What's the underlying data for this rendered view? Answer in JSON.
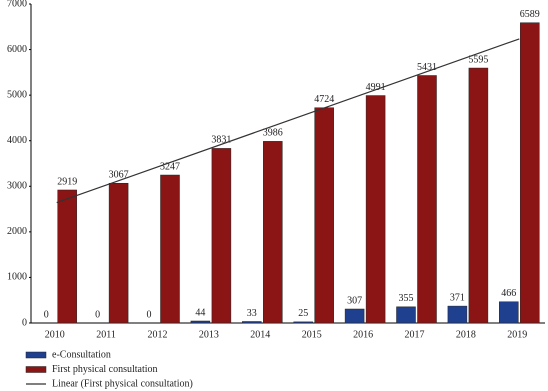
{
  "chart_data": {
    "type": "bar",
    "categories": [
      "2010",
      "2011",
      "2012",
      "2013",
      "2014",
      "2015",
      "2016",
      "2017",
      "2018",
      "2019"
    ],
    "series": [
      {
        "name": "e-Consultation",
        "color": "#1f3f8f",
        "values": [
          0,
          0,
          0,
          44,
          33,
          25,
          307,
          355,
          371,
          466
        ]
      },
      {
        "name": "First physical consultation",
        "color": "#8b1414",
        "values": [
          2919,
          3067,
          3247,
          3831,
          3986,
          4724,
          4991,
          5431,
          5595,
          6589
        ]
      }
    ],
    "trendline": {
      "name": "Linear (First physical consultation)",
      "color": "#333333"
    },
    "ylim": [
      0,
      7000
    ],
    "yticks": [
      0,
      1000,
      2000,
      3000,
      4000,
      5000,
      6000,
      7000
    ]
  }
}
